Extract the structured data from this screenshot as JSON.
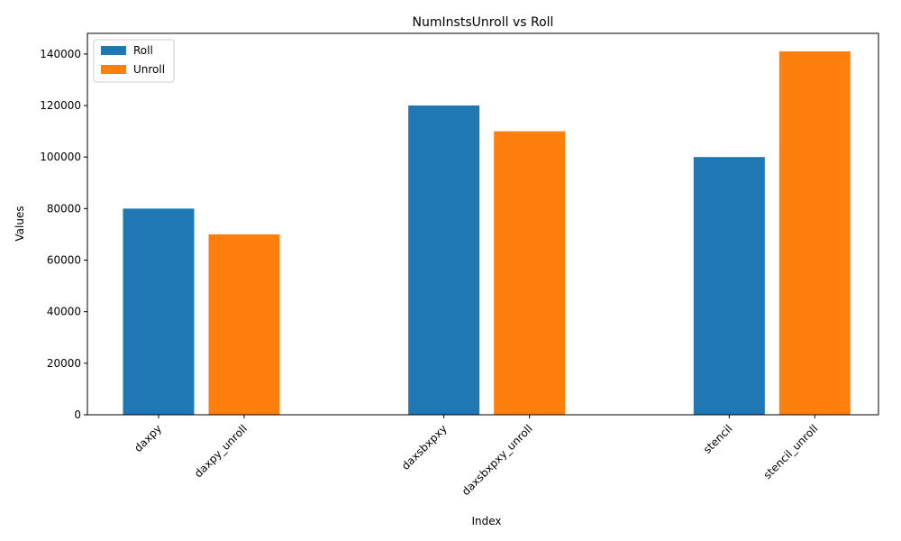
{
  "chart_data": {
    "type": "bar",
    "title": "NumInstsUnroll vs Roll",
    "x_label": "Index",
    "y_label": "Values",
    "categories": [
      "daxpy",
      "daxpy_unroll",
      "daxsbxpxy",
      "daxsbxpxy_unroll",
      "stencil",
      "stencil_unroll"
    ],
    "series": [
      {
        "name": "Roll",
        "color": "#1f77b4",
        "values": [
          80000,
          null,
          120000,
          null,
          100000,
          null
        ]
      },
      {
        "name": "Unroll",
        "color": "#ff7f0e",
        "values": [
          null,
          70000,
          null,
          110000,
          null,
          141000
        ]
      }
    ],
    "ylim": [
      0,
      148000
    ],
    "yticks": [
      0,
      20000,
      40000,
      60000,
      80000,
      100000,
      120000,
      140000
    ],
    "legend": "upper left",
    "grid": false
  }
}
